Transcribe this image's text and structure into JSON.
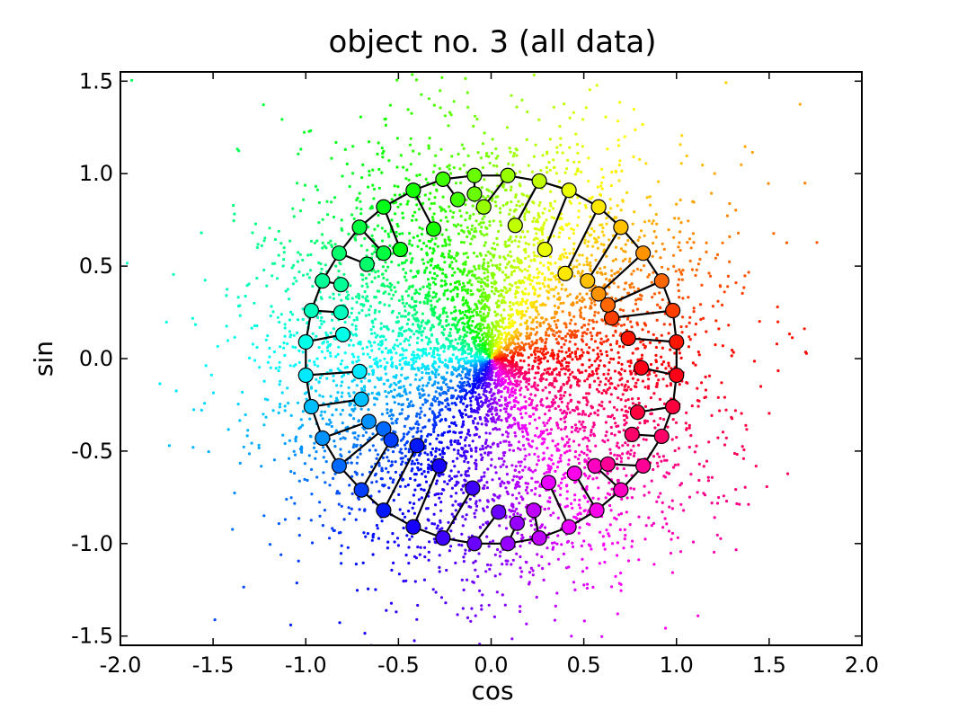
{
  "chart_data": {
    "type": "scatter",
    "title": "object no. 3 (all data)",
    "xlabel": "cos",
    "ylabel": "sin",
    "xlim": [
      -2.0,
      2.0
    ],
    "ylim": [
      -1.55,
      1.55
    ],
    "xticks": [
      -2.0,
      -1.5,
      -1.0,
      -0.5,
      0.0,
      0.5,
      1.0,
      1.5,
      2.0
    ],
    "xtick_labels": [
      "-2.0",
      "-1.5",
      "-1.0",
      "-0.5",
      "0.0",
      "0.5",
      "1.0",
      "1.5",
      "2.0"
    ],
    "yticks": [
      -1.5,
      -1.0,
      -0.5,
      0.0,
      0.5,
      1.0,
      1.5
    ],
    "ytick_labels": [
      "-1.5",
      "-1.0",
      "-0.5",
      "0.0",
      "0.5",
      "1.0",
      "1.5"
    ],
    "grid": false,
    "legend": "none",
    "colormap": "hsv",
    "scatter_cloud": {
      "description_of_marks": "dense cloud of small points colored by angle, centered near origin, spread within about radius 1.6",
      "approx_point_count": 6000
    },
    "curve": {
      "shape": "closed polyline through unit-circle nodes",
      "line_color": "#000000",
      "node_edge_color": "#000000"
    },
    "marker_pairs": [
      {
        "on_circle": [
          1.0,
          0.09
        ],
        "inner": [
          0.74,
          0.11
        ]
      },
      {
        "on_circle": [
          1.0,
          -0.09
        ],
        "inner": [
          0.81,
          -0.05
        ]
      },
      {
        "on_circle": [
          0.98,
          0.26
        ],
        "inner": [
          0.65,
          0.22
        ]
      },
      {
        "on_circle": [
          0.98,
          -0.26
        ],
        "inner": [
          0.79,
          -0.29
        ]
      },
      {
        "on_circle": [
          0.92,
          0.42
        ],
        "inner": [
          0.63,
          0.29
        ]
      },
      {
        "on_circle": [
          0.92,
          -0.42
        ],
        "inner": [
          0.76,
          -0.41
        ]
      },
      {
        "on_circle": [
          0.82,
          0.57
        ],
        "inner": [
          0.58,
          0.35
        ]
      },
      {
        "on_circle": [
          0.82,
          -0.58
        ],
        "inner": [
          0.63,
          -0.57
        ]
      },
      {
        "on_circle": [
          0.7,
          0.71
        ],
        "inner": [
          0.52,
          0.42
        ]
      },
      {
        "on_circle": [
          0.7,
          -0.71
        ],
        "inner": [
          0.56,
          -0.58
        ]
      },
      {
        "on_circle": [
          0.58,
          0.82
        ],
        "inner": [
          0.4,
          0.46
        ]
      },
      {
        "on_circle": [
          0.57,
          -0.82
        ],
        "inner": [
          0.45,
          -0.62
        ]
      },
      {
        "on_circle": [
          0.42,
          0.91
        ],
        "inner": [
          0.29,
          0.59
        ]
      },
      {
        "on_circle": [
          0.42,
          -0.91
        ],
        "inner": [
          0.31,
          -0.67
        ]
      },
      {
        "on_circle": [
          0.26,
          0.96
        ],
        "inner": [
          0.13,
          0.72
        ]
      },
      {
        "on_circle": [
          0.26,
          -0.97
        ],
        "inner": [
          0.23,
          -0.82
        ]
      },
      {
        "on_circle": [
          0.09,
          0.99
        ],
        "inner": [
          -0.04,
          0.82
        ]
      },
      {
        "on_circle": [
          0.09,
          -1.0
        ],
        "inner": [
          0.14,
          -0.89
        ]
      },
      {
        "on_circle": [
          -0.09,
          0.99
        ],
        "inner": [
          -0.09,
          0.89
        ]
      },
      {
        "on_circle": [
          -0.09,
          -1.0
        ],
        "inner": [
          0.04,
          -0.83
        ]
      },
      {
        "on_circle": [
          -0.26,
          0.97
        ],
        "inner": [
          -0.18,
          0.86
        ]
      },
      {
        "on_circle": [
          -0.26,
          -0.97
        ],
        "inner": [
          -0.1,
          -0.7
        ]
      },
      {
        "on_circle": [
          -0.42,
          0.91
        ],
        "inner": [
          -0.31,
          0.7
        ]
      },
      {
        "on_circle": [
          -0.42,
          -0.91
        ],
        "inner": [
          -0.28,
          -0.58
        ]
      },
      {
        "on_circle": [
          -0.58,
          0.82
        ],
        "inner": [
          -0.49,
          0.59
        ]
      },
      {
        "on_circle": [
          -0.58,
          -0.82
        ],
        "inner": [
          -0.4,
          -0.47
        ]
      },
      {
        "on_circle": [
          -0.71,
          0.71
        ],
        "inner": [
          -0.58,
          0.57
        ]
      },
      {
        "on_circle": [
          -0.7,
          -0.71
        ],
        "inner": [
          -0.54,
          -0.44
        ]
      },
      {
        "on_circle": [
          -0.82,
          0.57
        ],
        "inner": [
          -0.67,
          0.51
        ]
      },
      {
        "on_circle": [
          -0.82,
          -0.58
        ],
        "inner": [
          -0.58,
          -0.38
        ]
      },
      {
        "on_circle": [
          -0.91,
          0.42
        ],
        "inner": [
          -0.81,
          0.4
        ]
      },
      {
        "on_circle": [
          -0.91,
          -0.43
        ],
        "inner": [
          -0.66,
          -0.34
        ]
      },
      {
        "on_circle": [
          -0.97,
          0.26
        ],
        "inner": [
          -0.81,
          0.25
        ]
      },
      {
        "on_circle": [
          -0.97,
          -0.26
        ],
        "inner": [
          -0.7,
          -0.22
        ]
      },
      {
        "on_circle": [
          -1.0,
          0.09
        ],
        "inner": [
          -0.8,
          0.13
        ]
      },
      {
        "on_circle": [
          -1.0,
          -0.09
        ],
        "inner": [
          -0.71,
          -0.07
        ]
      }
    ]
  }
}
